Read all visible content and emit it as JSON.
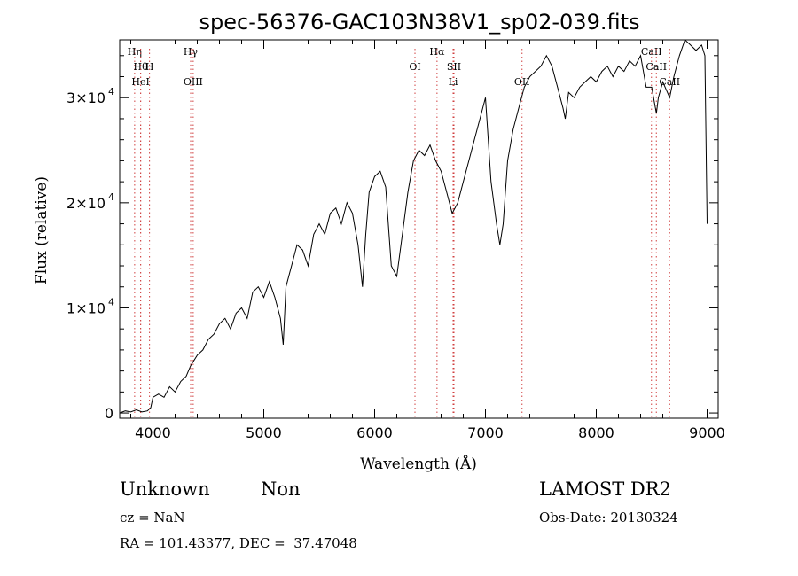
{
  "chart_data": {
    "type": "line",
    "title": "spec-56376-GAC103N38V1_sp02-039.fits",
    "xlabel": "Wavelength (Å)",
    "ylabel": "Flux (relative)",
    "xlim": [
      3700,
      9100
    ],
    "ylim": [
      -500,
      35500
    ],
    "x_ticks": [
      4000,
      5000,
      6000,
      7000,
      8000,
      9000
    ],
    "y_ticks": [
      {
        "value": 0,
        "label": "0",
        "exp": ""
      },
      {
        "value": 10000,
        "label": "1×10",
        "exp": "4"
      },
      {
        "value": 20000,
        "label": "2×10",
        "exp": "4"
      },
      {
        "value": 30000,
        "label": "3×10",
        "exp": "4"
      }
    ],
    "series": [
      {
        "x": [
          3700,
          3750,
          3800,
          3850,
          3900,
          3950,
          3980,
          4000,
          4050,
          4100,
          4150,
          4200,
          4250,
          4300,
          4340,
          4400,
          4450,
          4500,
          4550,
          4600,
          4650,
          4700,
          4750,
          4800,
          4850,
          4900,
          4950,
          5000,
          5050,
          5100,
          5150,
          5175,
          5200,
          5250,
          5300,
          5350,
          5400,
          5450,
          5500,
          5550,
          5600,
          5650,
          5700,
          5750,
          5800,
          5850,
          5890,
          5920,
          5950,
          6000,
          6050,
          6100,
          6150,
          6200,
          6250,
          6300,
          6350,
          6400,
          6450,
          6500,
          6550,
          6600,
          6650,
          6700,
          6750,
          6800,
          6850,
          6900,
          6950,
          7000,
          7050,
          7100,
          7130,
          7160,
          7200,
          7250,
          7300,
          7350,
          7400,
          7450,
          7500,
          7550,
          7600,
          7650,
          7700,
          7720,
          7750,
          7800,
          7850,
          7900,
          7950,
          8000,
          8050,
          8100,
          8150,
          8200,
          8250,
          8300,
          8350,
          8400,
          8450,
          8500,
          8542,
          8560,
          8600,
          8662,
          8700,
          8750,
          8800,
          8850,
          8900,
          8950,
          8980,
          9000
        ],
        "y": [
          0,
          200,
          100,
          300,
          100,
          200,
          500,
          1500,
          1800,
          1500,
          2500,
          2000,
          3000,
          3500,
          4500,
          5500,
          6000,
          7000,
          7500,
          8500,
          9000,
          8000,
          9500,
          10000,
          9000,
          11500,
          12000,
          11000,
          12500,
          11000,
          9000,
          6500,
          12000,
          14000,
          16000,
          15500,
          14000,
          17000,
          18000,
          17000,
          19000,
          19500,
          18000,
          20000,
          19000,
          16000,
          12000,
          17000,
          21000,
          22500,
          23000,
          21500,
          14000,
          13000,
          17000,
          21000,
          24000,
          25000,
          24500,
          25500,
          24000,
          23000,
          21000,
          19000,
          20000,
          22000,
          24000,
          26000,
          28000,
          30000,
          22000,
          18000,
          16000,
          18000,
          24000,
          27000,
          29000,
          31000,
          32000,
          32500,
          33000,
          34000,
          33000,
          31000,
          29000,
          28000,
          30500,
          30000,
          31000,
          31500,
          32000,
          31500,
          32500,
          33000,
          32000,
          33000,
          32500,
          33500,
          33000,
          34000,
          31000,
          31000,
          28500,
          30000,
          31500,
          30000,
          32000,
          34000,
          35500,
          35000,
          34500,
          35000,
          34000,
          18000
        ]
      }
    ],
    "lines": [
      {
        "label": "Hη",
        "x": 3835,
        "row": 0
      },
      {
        "label": "Hθ",
        "x": 3889,
        "row": 1
      },
      {
        "label": "H",
        "x": 3969,
        "row": 1
      },
      {
        "label": "HeI",
        "x": 3889,
        "row": 2
      },
      {
        "label": "Hγ",
        "x": 4340,
        "row": 0
      },
      {
        "label": "OIII",
        "x": 4363,
        "row": 2
      },
      {
        "label": "OI",
        "x": 6364,
        "row": 1
      },
      {
        "label": "Hα",
        "x": 6563,
        "row": 0
      },
      {
        "label": "SII",
        "x": 6716,
        "row": 1
      },
      {
        "label": "Li",
        "x": 6708,
        "row": 2
      },
      {
        "label": "OII",
        "x": 7330,
        "row": 2
      },
      {
        "label": "CaII",
        "x": 8498,
        "row": 0
      },
      {
        "label": "CaII",
        "x": 8542,
        "row": 1
      },
      {
        "label": "CaII",
        "x": 8662,
        "row": 2
      }
    ]
  },
  "info": {
    "class": "Unknown",
    "subclass": "Non",
    "survey": "LAMOST DR2",
    "cz": "cz = NaN",
    "obs_date": "Obs-Date: 20130324",
    "coords": "RA = 101.43377, DEC =  37.47048"
  }
}
